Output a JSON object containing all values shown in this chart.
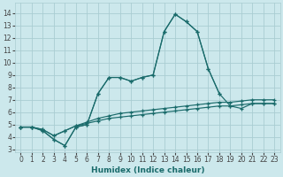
{
  "xlabel": "Humidex (Indice chaleur)",
  "background_color": "#cce8ec",
  "grid_color": "#aacdd2",
  "line_color": "#1a6b6b",
  "xlim": [
    -0.5,
    23.5
  ],
  "ylim": [
    2.8,
    14.8
  ],
  "xticks": [
    0,
    1,
    2,
    3,
    4,
    5,
    6,
    7,
    8,
    9,
    10,
    11,
    12,
    13,
    14,
    15,
    16,
    17,
    18,
    19,
    20,
    21,
    22,
    23
  ],
  "yticks": [
    3,
    4,
    5,
    6,
    7,
    8,
    9,
    10,
    11,
    12,
    13,
    14
  ],
  "series": [
    {
      "x": [
        0,
        1,
        2,
        3,
        4,
        5,
        6,
        7,
        8,
        9,
        10,
        11,
        12,
        13,
        14,
        15,
        16,
        17,
        18,
        19,
        20,
        21,
        22,
        23
      ],
      "y": [
        4.8,
        4.8,
        4.5,
        3.8,
        3.3,
        4.8,
        5.0,
        7.5,
        8.8,
        8.8,
        8.5,
        8.8,
        9.0,
        12.5,
        13.9,
        13.3,
        12.5,
        9.5,
        7.5,
        null,
        null,
        null,
        null,
        null
      ]
    },
    {
      "x": [
        0,
        1,
        2,
        3,
        4,
        5,
        6,
        7,
        8,
        9,
        10,
        11,
        12,
        13,
        14,
        15,
        16,
        17,
        18,
        19,
        20,
        21,
        22,
        23
      ],
      "y": [
        4.8,
        4.8,
        4.5,
        3.8,
        3.3,
        4.8,
        5.0,
        7.5,
        8.8,
        8.8,
        8.5,
        8.8,
        9.0,
        12.5,
        13.9,
        13.3,
        12.5,
        9.5,
        7.5,
        6.5,
        6.3,
        6.7,
        6.7,
        6.7
      ]
    },
    {
      "x": [
        0,
        1,
        2,
        3,
        4,
        5,
        6,
        7,
        8,
        9,
        10,
        11,
        12,
        13,
        14,
        15,
        16,
        17,
        18,
        19,
        20,
        21,
        22,
        23
      ],
      "y": [
        4.8,
        4.8,
        4.6,
        4.1,
        4.5,
        4.9,
        5.2,
        5.5,
        5.7,
        5.9,
        6.0,
        6.1,
        6.2,
        6.3,
        6.4,
        6.5,
        6.6,
        6.7,
        6.8,
        6.8,
        6.9,
        7.0,
        7.0,
        7.0
      ]
    },
    {
      "x": [
        0,
        1,
        2,
        3,
        4,
        5,
        6,
        7,
        8,
        9,
        10,
        11,
        12,
        13,
        14,
        15,
        16,
        17,
        18,
        19,
        20,
        21,
        22,
        23
      ],
      "y": [
        4.8,
        4.8,
        4.6,
        4.1,
        4.5,
        4.9,
        5.1,
        5.3,
        5.5,
        5.6,
        5.7,
        5.8,
        5.9,
        6.0,
        6.1,
        6.2,
        6.3,
        6.4,
        6.5,
        6.5,
        6.6,
        6.7,
        6.7,
        6.7
      ]
    }
  ]
}
